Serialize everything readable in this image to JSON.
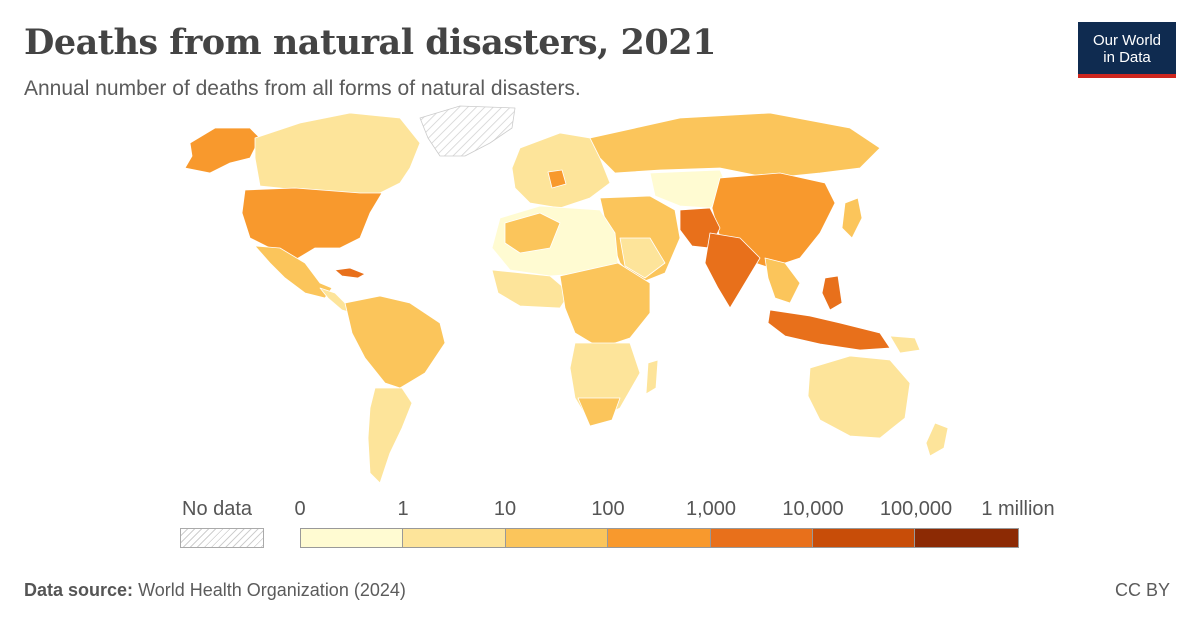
{
  "title": "Deaths from natural disasters, 2021",
  "subtitle": "Annual number of deaths from all forms of natural disasters.",
  "logo": {
    "line1": "Our World",
    "line2": "in Data"
  },
  "legend": {
    "no_data_label": "No data",
    "ticks": [
      "0",
      "1",
      "10",
      "100",
      "1,000",
      "10,000",
      "100,000",
      "1 million"
    ],
    "bin_colors": [
      "#fffbd2",
      "#fde49a",
      "#fbc55b",
      "#f8992d",
      "#e8701b",
      "#c84d08",
      "#8c2a04"
    ]
  },
  "source": {
    "label": "Data source:",
    "text": "World Health Organization (2024)"
  },
  "license": "CC BY",
  "map": {
    "colors": {
      "no_data": "#e6e6e6",
      "border": "#ffffff"
    }
  }
}
